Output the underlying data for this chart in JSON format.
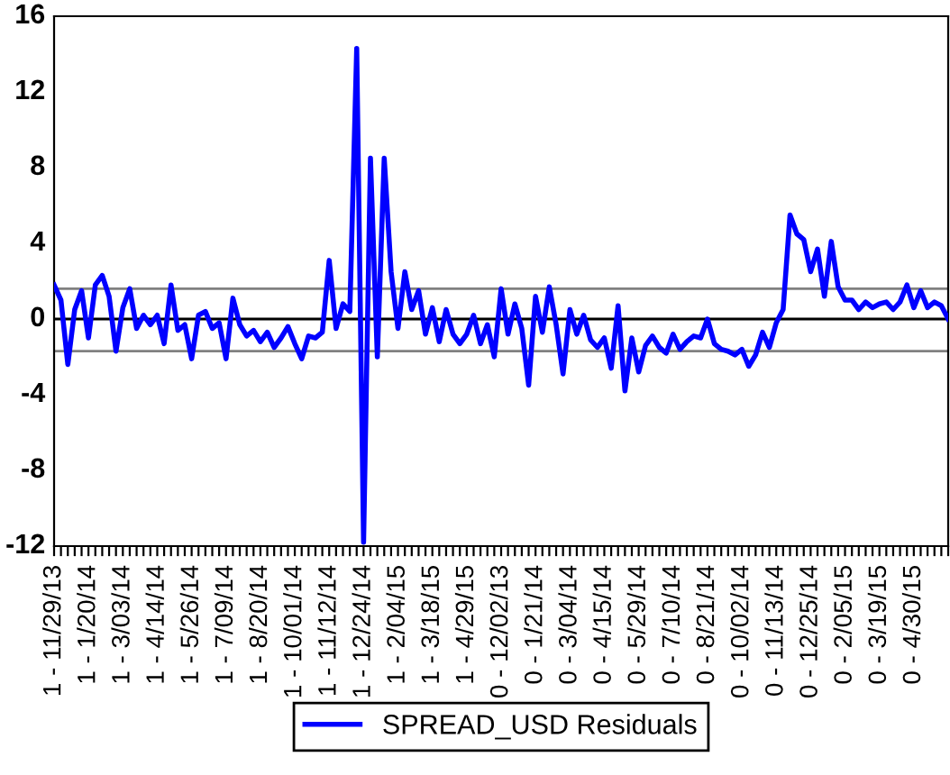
{
  "chart_data": {
    "type": "line",
    "categories": [
      "1 - 11/29/13",
      null,
      null,
      null,
      null,
      "1 - 1/20/14",
      null,
      null,
      null,
      null,
      "1 - 3/03/14",
      null,
      null,
      null,
      null,
      "1 - 4/14/14",
      null,
      null,
      null,
      null,
      "1 - 5/26/14",
      null,
      null,
      null,
      null,
      "1 - 7/09/14",
      null,
      null,
      null,
      null,
      "1 - 8/20/14",
      null,
      null,
      null,
      null,
      "1 - 10/01/14",
      null,
      null,
      null,
      null,
      "1 - 11/12/14",
      null,
      null,
      null,
      null,
      "1 - 12/24/14",
      null,
      null,
      null,
      null,
      "1 - 2/04/15",
      null,
      null,
      null,
      null,
      "1 - 3/18/15",
      null,
      null,
      null,
      null,
      "1 - 4/29/15",
      null,
      null,
      null,
      null,
      "0 - 12/02/13",
      null,
      null,
      null,
      null,
      "0 - 1/21/14",
      null,
      null,
      null,
      null,
      "0 - 3/04/14",
      null,
      null,
      null,
      null,
      "0 - 4/15/14",
      null,
      null,
      null,
      null,
      "0 - 5/29/14",
      null,
      null,
      null,
      null,
      "0 - 7/10/14",
      null,
      null,
      null,
      null,
      "0 - 8/21/14",
      null,
      null,
      null,
      null,
      "0 - 10/02/14",
      null,
      null,
      null,
      null,
      "0 - 11/13/14",
      null,
      null,
      null,
      null,
      "0 - 12/25/14",
      null,
      null,
      null,
      null,
      "0 - 2/05/15",
      null,
      null,
      null,
      null,
      "0 - 3/19/15",
      null,
      null,
      null,
      null,
      "0 - 4/30/15",
      null,
      null,
      null,
      null,
      null
    ],
    "series": [
      {
        "name": "SPREAD_USD Residuals",
        "color": "#0000ff",
        "values": [
          1.8,
          1.0,
          -2.4,
          0.5,
          1.5,
          -1.0,
          1.8,
          2.3,
          1.2,
          -1.7,
          0.6,
          1.6,
          -0.5,
          0.2,
          -0.3,
          0.2,
          -1.3,
          1.8,
          -0.6,
          -0.3,
          -2.1,
          0.2,
          0.4,
          -0.5,
          -0.2,
          -2.1,
          1.1,
          -0.3,
          -0.9,
          -0.6,
          -1.2,
          -0.7,
          -1.5,
          -1.0,
          -0.4,
          -1.3,
          -2.1,
          -0.9,
          -1.0,
          -0.7,
          3.1,
          -0.5,
          0.8,
          0.4,
          14.3,
          -11.8,
          8.5,
          -2.0,
          8.5,
          2.5,
          -0.5,
          2.5,
          0.5,
          1.5,
          -0.8,
          0.6,
          -1.2,
          0.5,
          -0.8,
          -1.3,
          -0.8,
          0.2,
          -1.3,
          -0.3,
          -2.0,
          1.6,
          -0.8,
          0.8,
          -0.5,
          -3.5,
          1.2,
          -0.7,
          1.7,
          -0.3,
          -2.9,
          0.5,
          -0.8,
          0.2,
          -1.1,
          -1.5,
          -1.0,
          -2.6,
          0.7,
          -3.8,
          -1.0,
          -2.8,
          -1.4,
          -0.9,
          -1.5,
          -1.8,
          -0.8,
          -1.6,
          -1.2,
          -0.9,
          -1.0,
          0.0,
          -1.3,
          -1.6,
          -1.7,
          -1.9,
          -1.6,
          -2.5,
          -1.9,
          -0.7,
          -1.5,
          -0.2,
          0.5,
          5.5,
          4.5,
          4.2,
          2.5,
          3.7,
          1.2,
          4.1,
          1.7,
          1.0,
          1.0,
          0.5,
          0.9,
          0.6,
          0.8,
          0.9,
          0.5,
          0.9,
          1.8,
          0.6,
          1.5,
          0.6,
          0.9,
          0.7,
          0.0
        ]
      }
    ],
    "ylim": [
      -12,
      16
    ],
    "yticks": [
      -12,
      -8,
      -4,
      0,
      4,
      8,
      12,
      16
    ],
    "ref_lines": [
      {
        "axis": "y",
        "value": 0,
        "color": "#000000"
      },
      {
        "axis": "y",
        "value": 1.6,
        "color": "#808080"
      },
      {
        "axis": "y",
        "value": -1.7,
        "color": "#808080"
      }
    ],
    "grid": false,
    "legend": "bottom",
    "marker": "none",
    "line_style": "solid"
  }
}
